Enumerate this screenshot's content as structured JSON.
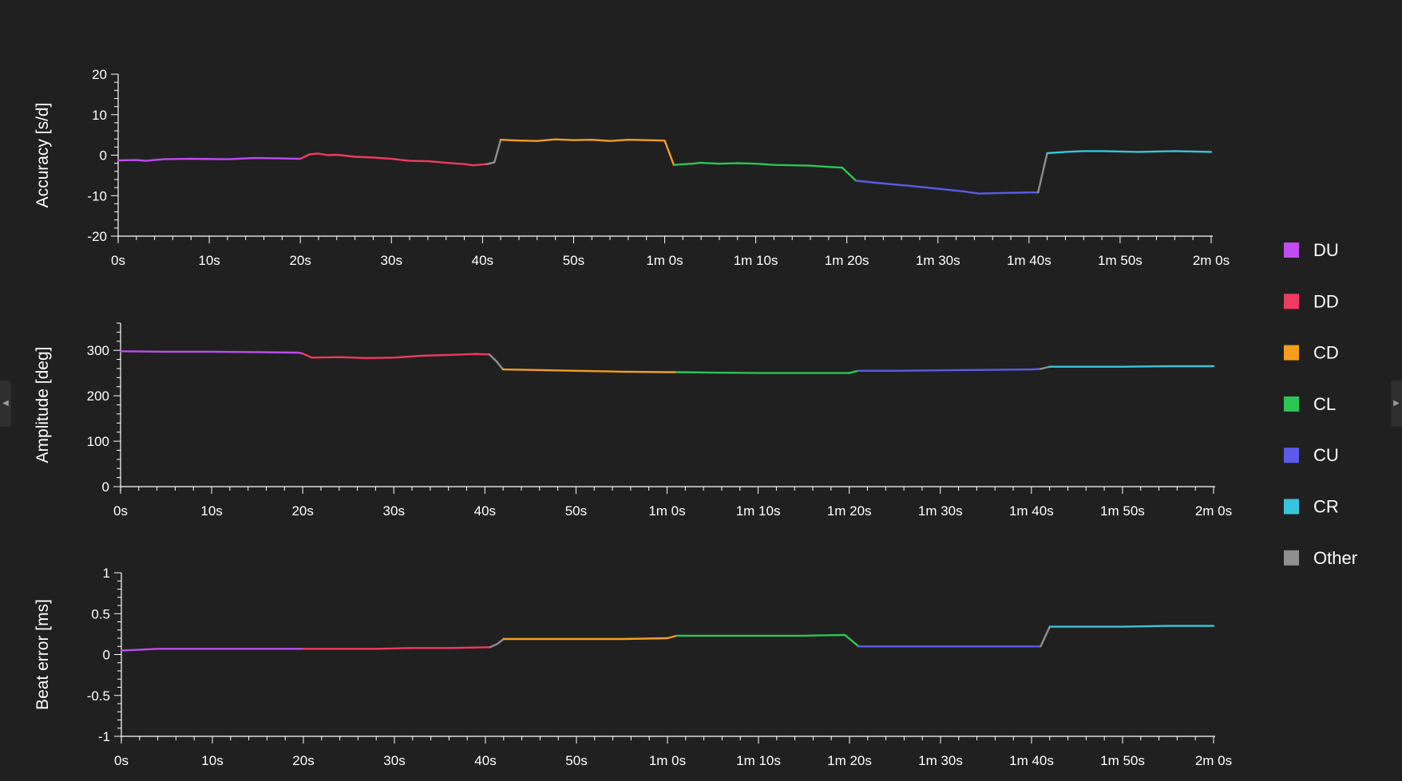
{
  "colors": {
    "DU": "#c04cf0",
    "DD": "#f03a5f",
    "CD": "#f59e1c",
    "CL": "#2dc653",
    "CU": "#5b5be8",
    "CR": "#37c5dc",
    "Other": "#8f8f8f",
    "axis": "#ffffff",
    "background": "#202020"
  },
  "icons": {
    "left_pane_toggle": "chevron-left-icon",
    "right_pane_toggle": "chevron-right-icon"
  },
  "legend": {
    "placement": "right",
    "items": [
      {
        "key": "DU",
        "label": "DU"
      },
      {
        "key": "DD",
        "label": "DD"
      },
      {
        "key": "CD",
        "label": "CD"
      },
      {
        "key": "CL",
        "label": "CL"
      },
      {
        "key": "CU",
        "label": "CU"
      },
      {
        "key": "CR",
        "label": "CR"
      },
      {
        "key": "Other",
        "label": "Other"
      }
    ]
  },
  "chart_data": [
    {
      "type": "line",
      "title": "",
      "xlabel": "",
      "ylabel": "Accuracy [s/d]",
      "xlim": [
        0,
        120
      ],
      "ylim": [
        -20,
        20
      ],
      "yticks": [
        -20,
        -10,
        0,
        10,
        20
      ],
      "ytick_labels": [
        "-20",
        "-10",
        "0",
        "10",
        "20"
      ],
      "xticks": [
        0,
        10,
        20,
        30,
        40,
        50,
        60,
        70,
        80,
        90,
        100,
        110,
        120
      ],
      "xtick_labels": [
        "0s",
        "10s",
        "20s",
        "30s",
        "40s",
        "50s",
        "1m 0s",
        "1m 10s",
        "1m 20s",
        "1m 30s",
        "1m 40s",
        "1m 50s",
        "2m 0s"
      ],
      "grid": false,
      "series": [
        {
          "name": "DU",
          "x": [
            0,
            2,
            3,
            5,
            8,
            12,
            15,
            18,
            20
          ],
          "y": [
            -1.3,
            -1.2,
            -1.4,
            -1.0,
            -0.9,
            -1.0,
            -0.7,
            -0.8,
            -0.9
          ]
        },
        {
          "name": "DD",
          "x": [
            20,
            21,
            22,
            23,
            24,
            26,
            28,
            30,
            32,
            34,
            36,
            38,
            39,
            40.5
          ],
          "y": [
            -0.9,
            0.2,
            0.4,
            0.0,
            0.1,
            -0.4,
            -0.6,
            -0.9,
            -1.4,
            -1.5,
            -1.9,
            -2.2,
            -2.5,
            -2.2
          ]
        },
        {
          "name": "Other",
          "x": [
            40.5,
            41.3,
            42
          ],
          "y": [
            -2.2,
            -1.8,
            3.8
          ]
        },
        {
          "name": "CD",
          "x": [
            42,
            44,
            46,
            48,
            50,
            52,
            54,
            56,
            58,
            60,
            61
          ],
          "y": [
            3.8,
            3.6,
            3.5,
            3.9,
            3.7,
            3.8,
            3.5,
            3.8,
            3.7,
            3.6,
            -2.4
          ]
        },
        {
          "name": "CL",
          "x": [
            61,
            63,
            64,
            66,
            68,
            70,
            72,
            74,
            76,
            78,
            79.5,
            81
          ],
          "y": [
            -2.4,
            -2.1,
            -1.9,
            -2.1,
            -2.0,
            -2.1,
            -2.4,
            -2.5,
            -2.6,
            -2.9,
            -3.1,
            -6.3
          ]
        },
        {
          "name": "CU",
          "x": [
            81,
            84,
            87,
            90,
            93,
            94.5,
            96,
            98,
            100,
            101
          ],
          "y": [
            -6.3,
            -7.0,
            -7.6,
            -8.3,
            -9.0,
            -9.5,
            -9.4,
            -9.3,
            -9.2,
            -9.2
          ]
        },
        {
          "name": "Other",
          "x": [
            101,
            102
          ],
          "y": [
            -9.2,
            0.5
          ]
        },
        {
          "name": "CR",
          "x": [
            102,
            104,
            106,
            108,
            110,
            112,
            114,
            116,
            118,
            120
          ],
          "y": [
            0.5,
            0.8,
            1.0,
            1.0,
            0.9,
            0.8,
            0.9,
            1.0,
            0.9,
            0.8
          ]
        }
      ]
    },
    {
      "type": "line",
      "title": "",
      "xlabel": "",
      "ylabel": "Amplitude [deg]",
      "xlim": [
        0,
        120
      ],
      "ylim": [
        0,
        360
      ],
      "yticks": [
        0,
        100,
        200,
        300
      ],
      "ytick_labels": [
        "0",
        "100",
        "200",
        "300"
      ],
      "xticks": [
        0,
        10,
        20,
        30,
        40,
        50,
        60,
        70,
        80,
        90,
        100,
        110,
        120
      ],
      "xtick_labels": [
        "0s",
        "10s",
        "20s",
        "30s",
        "40s",
        "50s",
        "1m 0s",
        "1m 10s",
        "1m 20s",
        "1m 30s",
        "1m 40s",
        "1m 50s",
        "2m 0s"
      ],
      "grid": false,
      "series": [
        {
          "name": "DU",
          "x": [
            0,
            5,
            10,
            15,
            19.5,
            20
          ],
          "y": [
            298,
            297,
            297,
            296,
            295,
            293
          ]
        },
        {
          "name": "DD",
          "x": [
            20,
            21,
            24,
            27,
            30,
            33,
            36,
            39,
            40.5
          ],
          "y": [
            293,
            284,
            285,
            283,
            284,
            288,
            290,
            292,
            291
          ]
        },
        {
          "name": "Other",
          "x": [
            40.5,
            41.3,
            42
          ],
          "y": [
            291,
            275,
            258
          ]
        },
        {
          "name": "CD",
          "x": [
            42,
            45,
            50,
            55,
            60,
            61
          ],
          "y": [
            258,
            257,
            255,
            253,
            252,
            252
          ]
        },
        {
          "name": "CL",
          "x": [
            61,
            65,
            70,
            75,
            80,
            81
          ],
          "y": [
            252,
            251,
            250,
            250,
            250,
            255
          ]
        },
        {
          "name": "CU",
          "x": [
            81,
            85,
            90,
            95,
            100,
            101
          ],
          "y": [
            255,
            255,
            256,
            257,
            258,
            259
          ]
        },
        {
          "name": "Other",
          "x": [
            101,
            102
          ],
          "y": [
            259,
            264
          ]
        },
        {
          "name": "CR",
          "x": [
            102,
            106,
            110,
            115,
            120
          ],
          "y": [
            264,
            264,
            264,
            265,
            265
          ]
        }
      ]
    },
    {
      "type": "line",
      "title": "",
      "xlabel": "",
      "ylabel": "Beat error [ms]",
      "xlim": [
        0,
        120
      ],
      "ylim": [
        -1,
        1
      ],
      "yticks": [
        -1,
        -0.5,
        0,
        0.5,
        1
      ],
      "ytick_labels": [
        "-1",
        "-0.5",
        "0",
        "0.5",
        "1"
      ],
      "xticks": [
        0,
        10,
        20,
        30,
        40,
        50,
        60,
        70,
        80,
        90,
        100,
        110,
        120
      ],
      "xtick_labels": [
        "0s",
        "10s",
        "20s",
        "30s",
        "40s",
        "50s",
        "1m 0s",
        "1m 10s",
        "1m 20s",
        "1m 30s",
        "1m 40s",
        "1m 50s",
        "2m 0s"
      ],
      "grid": false,
      "series": [
        {
          "name": "DU",
          "x": [
            0,
            2,
            4,
            8,
            14,
            20
          ],
          "y": [
            0.05,
            0.06,
            0.07,
            0.07,
            0.07,
            0.07
          ]
        },
        {
          "name": "DD",
          "x": [
            20,
            24,
            28,
            32,
            36,
            40.5
          ],
          "y": [
            0.07,
            0.07,
            0.07,
            0.08,
            0.08,
            0.09
          ]
        },
        {
          "name": "Other",
          "x": [
            40.5,
            41.3,
            42
          ],
          "y": [
            0.09,
            0.13,
            0.19
          ]
        },
        {
          "name": "CD",
          "x": [
            42,
            46,
            50,
            55,
            60,
            61
          ],
          "y": [
            0.19,
            0.19,
            0.19,
            0.19,
            0.2,
            0.23
          ]
        },
        {
          "name": "CL",
          "x": [
            61,
            65,
            70,
            75,
            79.5,
            81
          ],
          "y": [
            0.23,
            0.23,
            0.23,
            0.23,
            0.24,
            0.1
          ]
        },
        {
          "name": "CU",
          "x": [
            81,
            86,
            91,
            96,
            101
          ],
          "y": [
            0.1,
            0.1,
            0.1,
            0.1,
            0.1
          ]
        },
        {
          "name": "Other",
          "x": [
            101,
            102
          ],
          "y": [
            0.1,
            0.34
          ]
        },
        {
          "name": "CR",
          "x": [
            102,
            106,
            110,
            115,
            120
          ],
          "y": [
            0.34,
            0.34,
            0.34,
            0.35,
            0.35
          ]
        }
      ]
    }
  ]
}
